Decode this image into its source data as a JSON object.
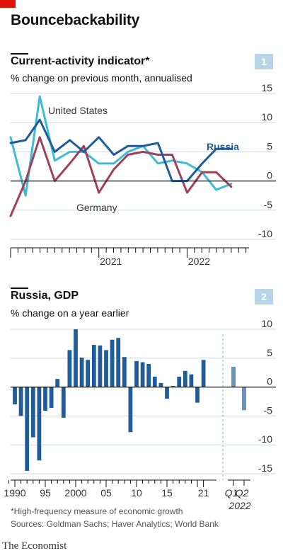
{
  "header": {
    "title": "Bouncebackability",
    "accent_color": "#E3120B"
  },
  "footer": {
    "footnote": "*High-frequency measure of economic growth",
    "sources": "Sources: Goldman Sachs; Haver Analytics; World Bank",
    "brand": "The Economist"
  },
  "chart_data": [
    {
      "type": "line",
      "panel_number": "1",
      "title": "Current-activity indicator*",
      "subtitle": "% change on previous month, annualised",
      "ylim": [
        -10,
        15
      ],
      "yticks": [
        15,
        10,
        5,
        0,
        -5,
        -10
      ],
      "xlabels": [
        {
          "label": "2021",
          "x": 2021.0
        },
        {
          "label": "2022",
          "x": 2022.0
        }
      ],
      "series": [
        {
          "name": "United States",
          "color": "#3EBCD2",
          "x": [
            2020.0,
            2020.17,
            2020.33,
            2020.5,
            2020.67,
            2020.83,
            2021.0,
            2021.17,
            2021.33,
            2021.5,
            2021.67,
            2021.83,
            2022.0,
            2022.17,
            2022.33,
            2022.5
          ],
          "values": [
            7.5,
            -2.5,
            14.5,
            3.5,
            5.0,
            5.0,
            3.0,
            3.0,
            5.0,
            6.0,
            3.0,
            3.5,
            3.0,
            1.5,
            -1.5,
            -0.5
          ]
        },
        {
          "name": "Germany",
          "color": "#A1405A",
          "x": [
            2020.0,
            2020.17,
            2020.33,
            2020.5,
            2020.67,
            2020.83,
            2021.0,
            2021.17,
            2021.33,
            2021.5,
            2021.67,
            2021.83,
            2022.0,
            2022.17,
            2022.33,
            2022.5
          ],
          "values": [
            -6.0,
            0.0,
            7.5,
            0.0,
            3.0,
            6.0,
            -2.0,
            2.0,
            4.5,
            5.0,
            4.5,
            4.5,
            -2.0,
            1.5,
            1.5,
            -1.0
          ]
        },
        {
          "name": "Russia",
          "color": "#1F5C99",
          "x": [
            2020.0,
            2020.17,
            2020.33,
            2020.5,
            2020.67,
            2020.83,
            2021.0,
            2021.17,
            2021.33,
            2021.5,
            2021.67,
            2021.83,
            2022.0,
            2022.17,
            2022.33,
            2022.5
          ],
          "values": [
            6.5,
            7.0,
            10.5,
            5.0,
            7.0,
            5.0,
            7.5,
            4.5,
            6.0,
            6.0,
            6.5,
            0.0,
            0.0,
            3.0,
            5.5,
            5.5
          ]
        }
      ]
    },
    {
      "type": "bar",
      "panel_number": "2",
      "title": "Russia, GDP",
      "subtitle": "% change on a year earlier",
      "ylim": [
        -15,
        10
      ],
      "yticks": [
        10,
        5,
        0,
        -5,
        -10,
        -15
      ],
      "bar_color": "#1F5C99",
      "forecast_color": "#6E91B9",
      "xlabels": [
        "1990",
        "95",
        "2000",
        "05",
        "10",
        "15",
        "21"
      ],
      "categories": [
        1989,
        1990,
        1991,
        1992,
        1993,
        1994,
        1995,
        1996,
        1997,
        1998,
        1999,
        2000,
        2001,
        2002,
        2003,
        2004,
        2005,
        2006,
        2007,
        2008,
        2009,
        2010,
        2011,
        2012,
        2013,
        2014,
        2015,
        2016,
        2017,
        2018,
        2019,
        2020,
        2021
      ],
      "values": [
        null,
        -3.0,
        -5.0,
        -14.5,
        -8.7,
        -12.7,
        -4.1,
        -3.6,
        1.4,
        -5.3,
        6.4,
        10.0,
        5.1,
        4.7,
        7.3,
        7.2,
        6.4,
        8.2,
        8.5,
        5.2,
        -7.8,
        4.5,
        4.3,
        4.0,
        1.8,
        0.7,
        -2.0,
        0.2,
        1.8,
        2.8,
        2.2,
        -2.7,
        4.7
      ],
      "forecast": {
        "labels": [
          "Q1",
          "Q2"
        ],
        "period_label": "2022",
        "values": [
          3.5,
          -4.0
        ]
      }
    }
  ]
}
